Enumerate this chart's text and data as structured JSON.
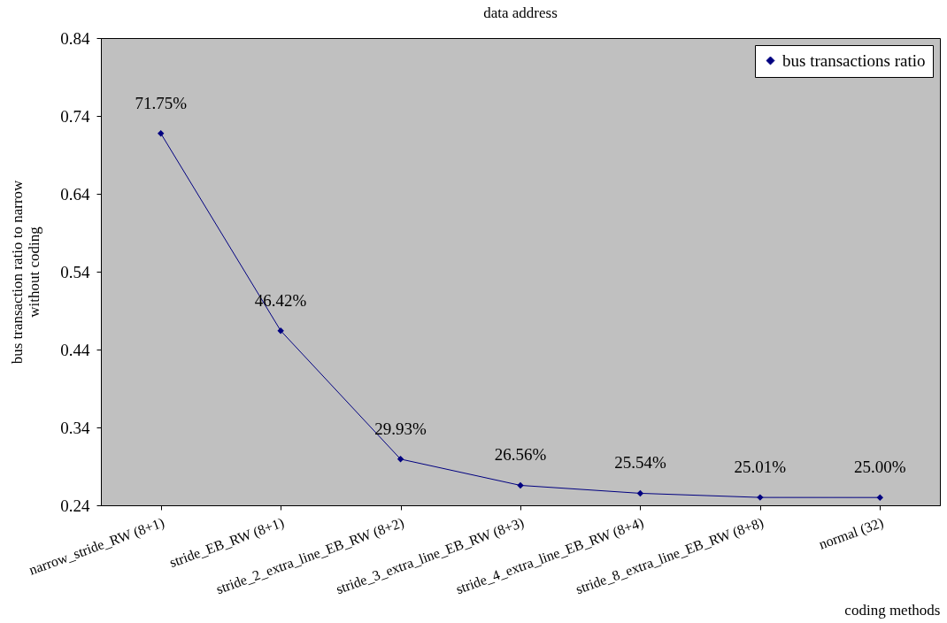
{
  "chart_data": {
    "type": "line",
    "title": "data address",
    "xlabel": "coding methods",
    "ylabel": "bus transaction ratio to narrow without coding",
    "categories": [
      "narrow_stride_RW (8+1)",
      "stride_EB_RW (8+1)",
      "stride_2_extra_line_EB_RW (8+2)",
      "stride_3_extra_line_EB_RW (8+3)",
      "stride_4_extra_line_EB_RW (8+4)",
      "stride_8_extra_line_EB_RW (8+8)",
      "normal (32)"
    ],
    "series": [
      {
        "name": "bus transactions ratio",
        "color": "#000080",
        "values": [
          0.7175,
          0.4642,
          0.2993,
          0.2656,
          0.2554,
          0.2501,
          0.25
        ],
        "value_labels": [
          "71.75%",
          "46.42%",
          "29.93%",
          "26.56%",
          "25.54%",
          "25.01%",
          "25.00%"
        ]
      }
    ],
    "ylim": [
      0.24,
      0.84
    ],
    "yticks": [
      0.24,
      0.34,
      0.44,
      0.54,
      0.64,
      0.74,
      0.84
    ],
    "legend": "top right",
    "marker": "diamond",
    "line_style": "solid"
  }
}
